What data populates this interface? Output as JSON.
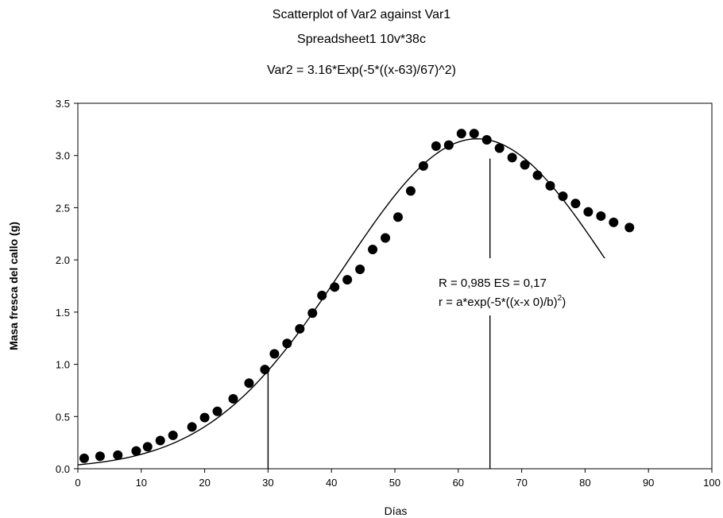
{
  "chart_data": {
    "type": "scatter",
    "title": "Scatterplot of Var2 against Var1",
    "subtitle": "Spreadsheet1 10v*38c",
    "equation": "Var2 = 3.16*Exp(-5*((x-63)/67)^2)",
    "xlabel": "Días",
    "ylabel": "Masa fresca del callo (g)",
    "xlim": [
      0,
      100
    ],
    "ylim": [
      0,
      3.5
    ],
    "xticks": [
      "0",
      "10",
      "20",
      "30",
      "40",
      "50",
      "60",
      "70",
      "80",
      "90",
      "100"
    ],
    "yticks": [
      "0.0",
      "0.5",
      "1.0",
      "1.5",
      "2.0",
      "2.5",
      "3.0",
      "3.5"
    ],
    "annotation_line1": "R = 0,985  ES = 0,17",
    "annotation_line2_main": "r  = a*exp(-5*((x-x 0)/b)",
    "annotation_line2_sup": "2",
    "annotation_line2_end": ")",
    "vertical_markers": [
      {
        "x": 30,
        "y_top": 0.95
      },
      {
        "x": 65,
        "y_top": 2.97
      }
    ],
    "fit": {
      "a": 3.16,
      "x0": 63,
      "b": 67,
      "drawn_range": [
        0,
        87
      ]
    },
    "x": [
      1,
      3.5,
      6.3,
      9.2,
      11,
      13,
      15,
      18,
      20,
      22,
      24.5,
      27,
      29.5,
      31,
      33,
      35,
      37,
      38.5,
      40.5,
      42.5,
      44.5,
      46.5,
      48.5,
      50.5,
      52.5,
      54.5,
      56.5,
      58.5,
      60.5,
      62.5,
      64.5,
      66.5,
      68.5,
      70.5,
      72.5,
      74.5,
      76.5,
      78.5,
      80.5,
      82.5,
      84.5,
      87
    ],
    "y": [
      0.1,
      0.12,
      0.13,
      0.17,
      0.21,
      0.27,
      0.32,
      0.4,
      0.49,
      0.55,
      0.67,
      0.82,
      0.95,
      1.1,
      1.2,
      1.34,
      1.49,
      1.66,
      1.74,
      1.81,
      1.91,
      2.1,
      2.21,
      2.41,
      2.66,
      2.9,
      3.09,
      3.1,
      3.21,
      3.21,
      3.15,
      3.07,
      2.98,
      2.91,
      2.81,
      2.71,
      2.61,
      2.54,
      2.46,
      2.42,
      2.36,
      2.31
    ]
  }
}
